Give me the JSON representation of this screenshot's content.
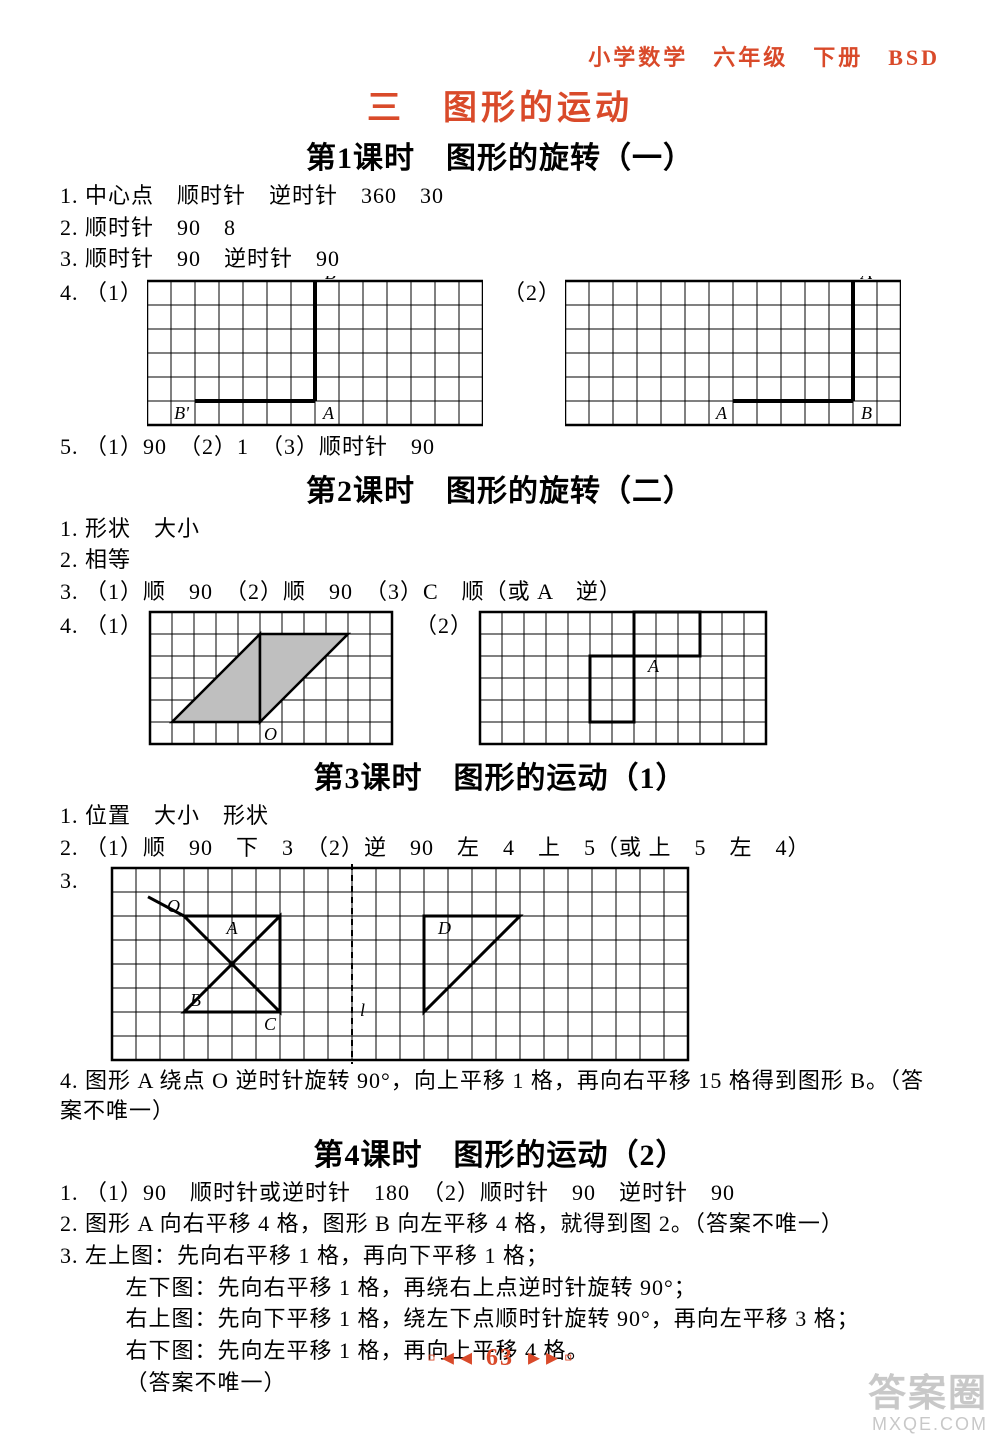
{
  "header": "小学数学　六年级　下册　BSD",
  "chapterTitle": "三　图形的运动",
  "lessons": [
    {
      "title": "第1课时　图形的旋转（一）",
      "lines": [
        "1. 中心点　顺时针　逆时针　360　30",
        "2. 顺时针　90　8",
        "3. 顺时针　90　逆时针　90"
      ],
      "q4_label_left": "4. （1）",
      "q4_label_right": "（2）",
      "q5": "5. （1）90　（2）1　（3）顺时针　90",
      "grid1": {
        "cols": 14,
        "rows": 6,
        "cell": 24,
        "labels": {
          "B": "B",
          "Bp": "B'",
          "A": "A"
        },
        "seg": [
          [
            7,
            0,
            7,
            5
          ],
          [
            7,
            5,
            2,
            5
          ]
        ],
        "pts": {
          "B": [
            7,
            0
          ],
          "A": [
            7,
            5
          ],
          "Bp": [
            2,
            5
          ]
        }
      },
      "grid2": {
        "cols": 14,
        "rows": 6,
        "cell": 24,
        "labels": {
          "Ap": "A'",
          "A": "A",
          "B": "B"
        },
        "seg": [
          [
            12,
            0,
            12,
            5
          ],
          [
            12,
            5,
            7,
            5
          ]
        ],
        "pts": {
          "Ap": [
            12,
            0
          ],
          "B": [
            12,
            5
          ],
          "A": [
            7,
            5
          ]
        }
      }
    },
    {
      "title": "第2课时　图形的旋转（二）",
      "lines": [
        "1. 形状　大小",
        "2. 相等",
        "3. （1）顺　90　（2）顺　90　（3）C　顺（或 A　逆）"
      ],
      "q4_label_left": "4. （1）",
      "q4_label_right": "（2）",
      "gridA": {
        "cols": 11,
        "rows": 6,
        "cell": 22,
        "O_label": "O",
        "tri1": [
          [
            1,
            5
          ],
          [
            5,
            5
          ],
          [
            5,
            1
          ]
        ],
        "tri2": [
          [
            5,
            5
          ],
          [
            5,
            1
          ],
          [
            9,
            1
          ]
        ]
      },
      "gridB": {
        "cols": 13,
        "rows": 6,
        "cell": 22,
        "A_label": "A",
        "rect1": [
          [
            7,
            0
          ],
          [
            10,
            0
          ],
          [
            10,
            2
          ],
          [
            7,
            2
          ]
        ],
        "rect2": [
          [
            5,
            2
          ],
          [
            7,
            2
          ],
          [
            7,
            5
          ],
          [
            5,
            5
          ]
        ]
      }
    },
    {
      "title": "第3课时　图形的运动（1）",
      "lines": [
        "1. 位置　大小　形状",
        "2. （1）顺　90　下　3　（2）逆　90　左　4　上　5（或 上　5　左　4）"
      ],
      "q3_label": "3.",
      "q4": "4. 图形 A 绕点 O 逆时针旋转 90°，向上平移 1 格，再向右平移 15 格得到图形 B。（答案不唯一）",
      "grid": {
        "cols": 24,
        "rows": 8,
        "cell": 24,
        "labels": {
          "O": "O",
          "A": "A",
          "B": "B",
          "C": "C",
          "D": "D",
          "l": "l"
        },
        "mirrorCol": 10,
        "triA": [
          [
            3,
            2
          ],
          [
            7,
            2
          ],
          [
            7,
            6
          ]
        ],
        "triB": [
          [
            3,
            6
          ],
          [
            7,
            6
          ]
        ],
        "triBfull": [
          [
            3,
            6
          ],
          [
            7,
            2
          ],
          [
            7,
            6
          ]
        ],
        "lineOA": [
          [
            3,
            2
          ],
          [
            7,
            2
          ]
        ],
        "triD": [
          [
            13,
            2
          ],
          [
            17,
            2
          ],
          [
            13,
            6
          ]
        ]
      }
    },
    {
      "title": "第4课时　图形的运动（2）",
      "lines": [
        "1. （1）90　顺时针或逆时针　180　（2）顺时针　90　逆时针　90",
        "2. 图形 A 向右平移 4 格，图形 B 向左平移 4 格，就得到图 2。（答案不唯一）",
        "3. 左上图：先向右平移 1 格，再向下平移 1 格；",
        "　 左下图：先向右平移 1 格，再绕右上点逆时针旋转 90°；",
        "　 右上图：先向下平移 1 格，绕左下点顺时针旋转 90°，再向左平移 3 格；",
        "　 右下图：先向左平移 1 格，再向上平移 4 格。",
        "　 （答案不唯一）"
      ]
    }
  ],
  "pageNumber": "63",
  "watermark": {
    "top": "答案圈",
    "bottom": "MXQE.COM"
  },
  "colors": {
    "accent": "#d94a2a",
    "grid": "#000000",
    "fill": "#bfbfbf",
    "text": "#000000"
  }
}
